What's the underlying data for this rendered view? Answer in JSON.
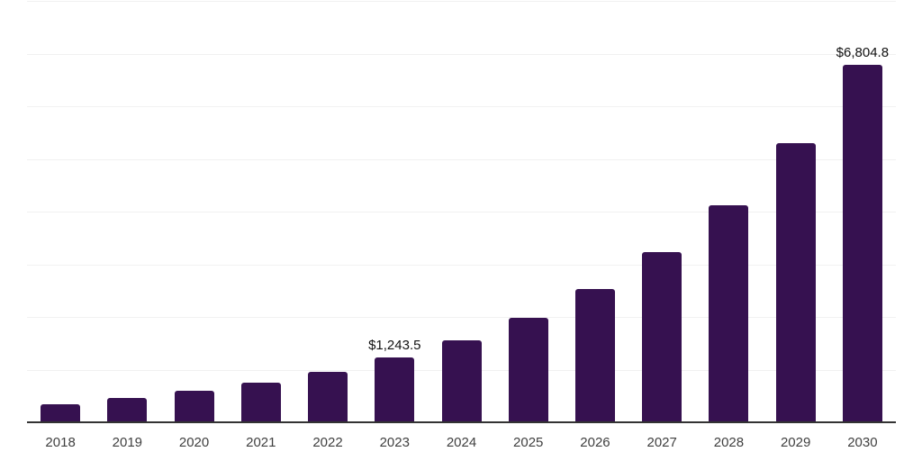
{
  "chart_data": {
    "type": "bar",
    "title": "",
    "xlabel": "",
    "ylabel": "",
    "categories": [
      "2018",
      "2019",
      "2020",
      "2021",
      "2022",
      "2023",
      "2024",
      "2025",
      "2026",
      "2027",
      "2028",
      "2029",
      "2030"
    ],
    "values": [
      360,
      480,
      620,
      770,
      980,
      1243.5,
      1570,
      2005,
      2550,
      3240,
      4140,
      5310,
      6804.8
    ],
    "bar_labels": [
      null,
      null,
      null,
      null,
      null,
      "$1,243.5",
      null,
      null,
      null,
      null,
      null,
      null,
      "$6,804.8"
    ],
    "ylim": [
      0,
      8000
    ],
    "gridline_step": 1000,
    "grid": "horizontal",
    "legend": "none",
    "y_axis_tick_labels_visible": false,
    "colors": {
      "bar": "#361150",
      "axis": "#333333",
      "gridline": "#f1f1f1",
      "bar_label_text": "#111111",
      "tick_label_text": "#404040",
      "background": "#ffffff"
    }
  }
}
